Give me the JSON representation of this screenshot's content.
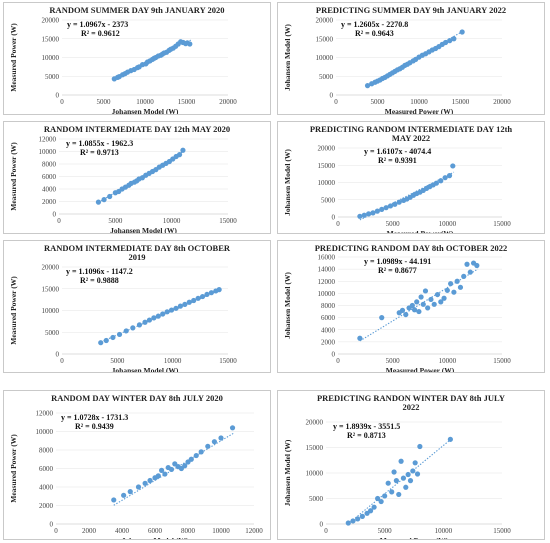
{
  "colors": {
    "marker": "#5b9bd5",
    "trend": "#5b9bd5",
    "border": "#c9c9c9",
    "grid": "#e4e4e4"
  },
  "chart_data": [
    {
      "type": "scatter",
      "title": [
        "RANDOM SUMMER DAY 9th JANUARY 2020"
      ],
      "xlabel": "Johansen Model (W)",
      "ylabel": "Measured Power (W)",
      "xlim": [
        0,
        20000
      ],
      "ylim": [
        0,
        20000
      ],
      "xticks": [
        0,
        5000,
        10000,
        15000,
        20000
      ],
      "yticks": [
        0,
        5000,
        10000,
        15000,
        20000
      ],
      "equation": "y = 1.0967x - 2373",
      "r2": "R² = 0.9612",
      "trend": {
        "slope": 1.0967,
        "intercept": -2373,
        "x_range": [
          6300,
          15600
        ]
      },
      "x": [
        6300,
        6700,
        6900,
        7300,
        7600,
        7900,
        8300,
        8700,
        9100,
        9300,
        9700,
        10100,
        10300,
        10600,
        10900,
        11100,
        11300,
        11600,
        11900,
        12100,
        12300,
        12600,
        12900,
        13100,
        13400,
        13700,
        14000,
        14300,
        14600,
        14900,
        15100,
        15400
      ],
      "y": [
        4300,
        4700,
        4900,
        5400,
        5700,
        6100,
        6500,
        6800,
        7300,
        7500,
        8100,
        8300,
        8800,
        9100,
        9500,
        9800,
        10000,
        10400,
        10600,
        10900,
        11200,
        11400,
        11900,
        12200,
        12500,
        13000,
        13600,
        14200,
        14000,
        13700,
        13900,
        13600
      ]
    },
    {
      "type": "scatter",
      "title": [
        "PREDICTING SUMMER DAY 9th JANUARY 2022"
      ],
      "xlabel": "Measured Power (W)",
      "ylabel": "Johansen Model (W)",
      "xlim": [
        0,
        20000
      ],
      "ylim": [
        0,
        20000
      ],
      "xticks": [
        0,
        5000,
        10000,
        15000,
        20000
      ],
      "yticks": [
        0,
        5000,
        10000,
        15000,
        20000
      ],
      "equation": "y = 1.2605x - 2270.8",
      "r2": "R² = 0.9643",
      "trend": {
        "slope": 1.2605,
        "intercept": -2270.8,
        "x_range": [
          3800,
          15300
        ]
      },
      "x": [
        3800,
        4300,
        4700,
        5000,
        5300,
        5600,
        5900,
        6200,
        6500,
        6800,
        7100,
        7400,
        7700,
        8000,
        8300,
        8600,
        8900,
        9300,
        9600,
        10000,
        10400,
        10800,
        11200,
        11600,
        12000,
        12400,
        12800,
        13200,
        13700,
        14200,
        15200
      ],
      "y": [
        2500,
        3000,
        3400,
        3700,
        4000,
        4400,
        4700,
        5100,
        5500,
        5900,
        6300,
        6700,
        7000,
        7400,
        7900,
        8200,
        8600,
        9100,
        9500,
        10100,
        10600,
        11000,
        11500,
        12000,
        12400,
        12900,
        13500,
        14000,
        14500,
        15000,
        16800
      ]
    },
    {
      "type": "scatter",
      "title": [
        "RANDOM INTERMEDIATE DAY 12th MAY 2020"
      ],
      "xlabel": "Johansen Model (W)",
      "ylabel": "Measured Power (W)",
      "xlim": [
        0,
        15000
      ],
      "ylim": [
        0,
        12000
      ],
      "xticks": [
        0,
        5000,
        10000,
        15000
      ],
      "yticks": [
        0,
        2000,
        4000,
        6000,
        8000,
        10000,
        12000
      ],
      "equation": "y = 1.0855x - 1962.3",
      "r2": "R² = 0.9713",
      "trend": {
        "slope": 1.0855,
        "intercept": -1962.3,
        "x_range": [
          3500,
          11100
        ]
      },
      "x": [
        3500,
        4000,
        4500,
        5000,
        5300,
        5600,
        5900,
        6200,
        6400,
        6700,
        6900,
        7100,
        7400,
        7700,
        8000,
        8300,
        8600,
        8900,
        9200,
        9500,
        9800,
        10100,
        10400,
        10700,
        11000
      ],
      "y": [
        1900,
        2300,
        2800,
        3400,
        3600,
        4000,
        4300,
        4600,
        4900,
        5100,
        5300,
        5600,
        5800,
        6200,
        6500,
        6800,
        7100,
        7500,
        7800,
        8100,
        8400,
        8800,
        9200,
        9500,
        10200
      ]
    },
    {
      "type": "scatter",
      "title": [
        "PREDICTING RANDOM INTERMEDIATE DAY 12th",
        "MAY 2022"
      ],
      "xlabel": "Measured Power(W)",
      "ylabel": "Johansen Model (W)",
      "xlim": [
        0,
        15000
      ],
      "ylim": [
        0,
        20000
      ],
      "xticks": [
        0,
        5000,
        10000,
        15000
      ],
      "yticks": [
        0,
        5000,
        10000,
        15000,
        20000
      ],
      "equation": "y = 1.6107x - 4074.4",
      "r2": "R² = 0.9391",
      "trend": {
        "slope": 1.6107,
        "intercept": -4074.4,
        "x_range": [
          2000,
          10600
        ]
      },
      "x": [
        2000,
        2400,
        2800,
        3200,
        3600,
        4000,
        4400,
        4800,
        5200,
        5600,
        6000,
        6300,
        6600,
        6900,
        7200,
        7500,
        7800,
        8100,
        8400,
        8700,
        9000,
        9400,
        9800,
        10200,
        10500
      ],
      "y": [
        200,
        500,
        900,
        1200,
        1700,
        2200,
        2700,
        3200,
        3700,
        4300,
        4800,
        5200,
        5700,
        6300,
        6800,
        7200,
        7700,
        8300,
        8800,
        9300,
        9800,
        10500,
        11400,
        12000,
        14800
      ]
    },
    {
      "type": "scatter",
      "title": [
        "RANDOM INTERMEDIATE DAY 8th OCTOBER",
        "2019"
      ],
      "xlabel": "Johansen Model (W)",
      "ylabel": "Measured Power (W)",
      "xlim": [
        0,
        15000
      ],
      "ylim": [
        0,
        20000
      ],
      "xticks": [
        0,
        5000,
        10000,
        15000
      ],
      "yticks": [
        0,
        5000,
        10000,
        15000,
        20000
      ],
      "equation": "y = 1.1096x - 1147.2",
      "r2": "R² = 0.9888",
      "trend": {
        "slope": 1.1096,
        "intercept": -1147.2,
        "x_range": [
          3500,
          14200
        ]
      },
      "x": [
        3500,
        4000,
        4600,
        5200,
        5800,
        6400,
        7000,
        7500,
        7900,
        8300,
        8700,
        9100,
        9500,
        9900,
        10300,
        10700,
        11100,
        11500,
        11900,
        12300,
        12700,
        13100,
        13500,
        13900,
        14200
      ],
      "y": [
        2600,
        3100,
        3800,
        4500,
        5300,
        6000,
        6700,
        7300,
        7800,
        8300,
        8700,
        9200,
        9700,
        10100,
        10500,
        11000,
        11400,
        11900,
        12300,
        12800,
        13200,
        13700,
        14100,
        14500,
        14800
      ]
    },
    {
      "type": "scatter",
      "title": [
        "PREDICTING RANDOM DAY 8th OCTOBER 2022"
      ],
      "xlabel": "Measured Power (W)",
      "ylabel": "Johansen Model (W)",
      "xlim": [
        0,
        15000
      ],
      "ylim": [
        0,
        16000
      ],
      "xticks": [
        0,
        5000,
        10000,
        15000
      ],
      "yticks": [
        0,
        2000,
        4000,
        6000,
        8000,
        10000,
        12000,
        14000,
        16000
      ],
      "equation": "y = 1.0989x - 44.191",
      "r2": "R² = 0.8677",
      "trend": {
        "slope": 1.0989,
        "intercept": -44.191,
        "x_range": [
          2000,
          12800
        ]
      },
      "x": [
        2000,
        4000,
        5600,
        5900,
        6200,
        6500,
        6800,
        7000,
        7200,
        7400,
        7600,
        7800,
        8000,
        8200,
        8500,
        8800,
        9100,
        9400,
        9700,
        10000,
        10300,
        10600,
        10900,
        11200,
        11500,
        11800,
        12100,
        12400,
        12700
      ],
      "y": [
        2600,
        6000,
        6800,
        7200,
        6500,
        7600,
        8000,
        7300,
        8600,
        7000,
        9400,
        8200,
        10400,
        7600,
        9000,
        8200,
        9800,
        8600,
        9200,
        10500,
        11600,
        10200,
        12000,
        11000,
        12800,
        14800,
        13500,
        15000,
        14600
      ]
    },
    {
      "type": "scatter",
      "title": [
        "RANDOM DAY WINTER DAY 8th JULY 2020"
      ],
      "xlabel": "Johansen Model (W)",
      "ylabel": "Measured Power (W)",
      "xlim": [
        0,
        12000
      ],
      "ylim": [
        0,
        12000
      ],
      "xticks": [
        0,
        2000,
        4000,
        6000,
        8000,
        10000,
        12000
      ],
      "yticks": [
        0,
        2000,
        4000,
        6000,
        8000,
        10000,
        12000
      ],
      "equation": "y = 1.0728x - 1731.3",
      "r2": "R² = 0.9439",
      "trend": {
        "slope": 1.0728,
        "intercept": -1731.3,
        "x_range": [
          3500,
          10800
        ]
      },
      "x": [
        3500,
        4100,
        4500,
        5000,
        5400,
        5700,
        6000,
        6200,
        6400,
        6600,
        6800,
        7000,
        7200,
        7400,
        7600,
        7800,
        8000,
        8200,
        8500,
        8800,
        9200,
        9600,
        10000,
        10700
      ],
      "y": [
        2600,
        3100,
        3500,
        4000,
        4400,
        4700,
        5000,
        5200,
        5800,
        5400,
        6100,
        5900,
        6500,
        6200,
        6000,
        6300,
        6700,
        7000,
        7400,
        7800,
        8400,
        8900,
        9300,
        10400
      ]
    },
    {
      "type": "scatter",
      "title": [
        "PREDICTING RANDON WINTER DAY 8th JULY",
        "2022"
      ],
      "xlabel": "Measured Power (W)",
      "ylabel": "Johansen Model (W)",
      "xlim": [
        0,
        15000
      ],
      "ylim": [
        0,
        20000
      ],
      "xticks": [
        0,
        5000,
        10000,
        15000
      ],
      "yticks": [
        0,
        5000,
        10000,
        15000,
        20000
      ],
      "equation": "y = 1.8939x - 3551.5",
      "r2": "R² = 0.8713",
      "trend": {
        "slope": 1.8939,
        "intercept": -3551.5,
        "x_range": [
          1900,
          10600
        ]
      },
      "x": [
        1900,
        2300,
        2700,
        3100,
        3500,
        3800,
        4100,
        4400,
        4700,
        5000,
        5300,
        5600,
        5800,
        6000,
        6200,
        6400,
        6600,
        6800,
        7000,
        7200,
        7400,
        7600,
        7800,
        8000,
        10600
      ],
      "y": [
        200,
        600,
        1000,
        1500,
        2100,
        2600,
        3300,
        5000,
        4400,
        5500,
        8000,
        6300,
        10200,
        8500,
        5800,
        12300,
        9000,
        7200,
        9700,
        8500,
        10400,
        12000,
        9800,
        15200,
        16600
      ]
    }
  ]
}
